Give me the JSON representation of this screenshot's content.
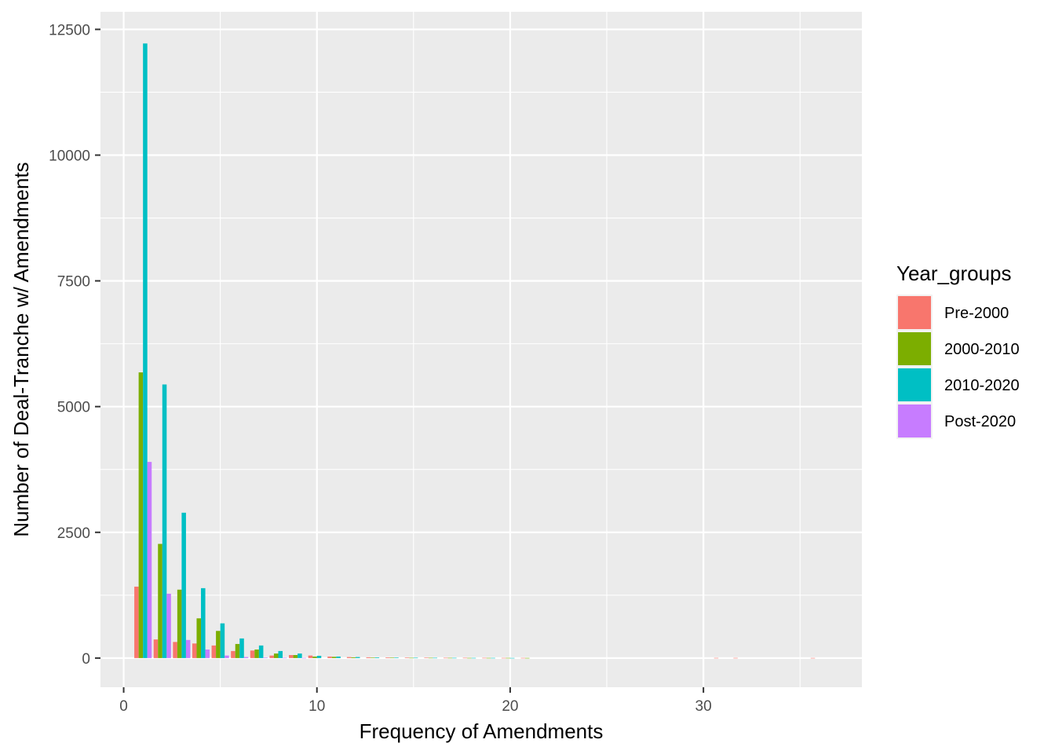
{
  "chart_data": {
    "type": "bar",
    "xlabel": "Frequency of Amendments",
    "ylabel": "Number of Deal-Tranche w/ Amendments",
    "xlim": [
      -1.2,
      38.2
    ],
    "ylim": [
      -580,
      12850
    ],
    "x_ticks": [
      0,
      10,
      20,
      30
    ],
    "y_ticks": [
      0,
      2500,
      5000,
      7500,
      10000,
      12500
    ],
    "x_tick_labels": [
      "0",
      "10",
      "20",
      "30"
    ],
    "y_tick_labels": [
      "0",
      "2500",
      "5000",
      "7500",
      "10000",
      "12500"
    ],
    "grid": true,
    "legend": {
      "title": "Year_groups",
      "position": "right",
      "entries": [
        "Pre-2000",
        "2000-2010",
        "2010-2020",
        "Post-2020"
      ]
    },
    "series": [
      {
        "name": "Pre-2000",
        "color": "#F8766D",
        "points": [
          [
            1,
            1420
          ],
          [
            2,
            370
          ],
          [
            3,
            320
          ],
          [
            4,
            290
          ],
          [
            5,
            250
          ],
          [
            6,
            140
          ],
          [
            7,
            150
          ],
          [
            8,
            50
          ],
          [
            9,
            60
          ],
          [
            10,
            50
          ],
          [
            11,
            30
          ],
          [
            12,
            20
          ],
          [
            13,
            15
          ],
          [
            14,
            12
          ],
          [
            15,
            10
          ],
          [
            16,
            8
          ],
          [
            17,
            5
          ],
          [
            18,
            5
          ],
          [
            19,
            4
          ],
          [
            20,
            3
          ],
          [
            21,
            3
          ],
          [
            31,
            3
          ],
          [
            32,
            3
          ],
          [
            36,
            2
          ]
        ]
      },
      {
        "name": "2000-2010",
        "color": "#7CAE00",
        "points": [
          [
            1,
            5680
          ],
          [
            2,
            2270
          ],
          [
            3,
            1360
          ],
          [
            4,
            790
          ],
          [
            5,
            540
          ],
          [
            6,
            280
          ],
          [
            7,
            170
          ],
          [
            8,
            90
          ],
          [
            9,
            60
          ],
          [
            10,
            30
          ],
          [
            11,
            25
          ],
          [
            12,
            15
          ],
          [
            13,
            10
          ],
          [
            14,
            8
          ],
          [
            15,
            5
          ],
          [
            16,
            5
          ],
          [
            17,
            4
          ],
          [
            18,
            3
          ],
          [
            19,
            3
          ],
          [
            20,
            3
          ],
          [
            21,
            2
          ]
        ]
      },
      {
        "name": "2010-2020",
        "color": "#00BFC4",
        "points": [
          [
            1,
            12220
          ],
          [
            2,
            5440
          ],
          [
            3,
            2890
          ],
          [
            4,
            1390
          ],
          [
            5,
            690
          ],
          [
            6,
            390
          ],
          [
            7,
            250
          ],
          [
            8,
            140
          ],
          [
            9,
            90
          ],
          [
            10,
            45
          ],
          [
            11,
            30
          ],
          [
            12,
            20
          ],
          [
            13,
            12
          ],
          [
            14,
            10
          ],
          [
            15,
            6
          ],
          [
            16,
            5
          ],
          [
            17,
            4
          ],
          [
            18,
            3
          ],
          [
            19,
            3
          ],
          [
            20,
            2
          ]
        ]
      },
      {
        "name": "Post-2020",
        "color": "#C77CFF",
        "points": [
          [
            1,
            3900
          ],
          [
            2,
            1280
          ],
          [
            3,
            360
          ],
          [
            4,
            170
          ],
          [
            5,
            50
          ],
          [
            6,
            20
          ],
          [
            7,
            10
          ],
          [
            8,
            5
          ],
          [
            9,
            3
          ]
        ]
      }
    ]
  }
}
